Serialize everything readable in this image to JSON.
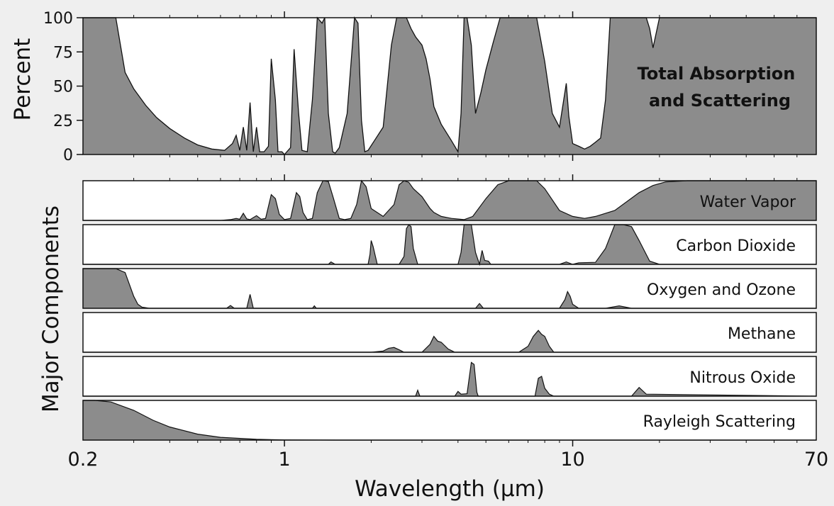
{
  "colors": {
    "background": "#efefef",
    "fill": "#8c8c8c",
    "line": "#111111",
    "panel": "#ffffff"
  },
  "chart_data": {
    "type": "area",
    "xlabel": "Wavelength (µm)",
    "x_scale": "log",
    "xlim": [
      0.2,
      70
    ],
    "x_ticks": [
      0.2,
      1,
      10,
      70
    ],
    "x_ticklabels": [
      "0.2",
      "1",
      "10",
      "70"
    ],
    "top_panel": {
      "title_lines": [
        "Total Absorption",
        "and Scattering"
      ],
      "ylabel": "Percent",
      "ylim": [
        0,
        100
      ],
      "y_ticks": [
        0,
        25,
        50,
        75,
        100
      ],
      "y_ticklabels": [
        "0",
        "25",
        "50",
        "75",
        "100"
      ],
      "x": [
        0.2,
        0.26,
        0.28,
        0.3,
        0.33,
        0.36,
        0.4,
        0.45,
        0.5,
        0.56,
        0.62,
        0.66,
        0.68,
        0.7,
        0.72,
        0.74,
        0.76,
        0.78,
        0.8,
        0.82,
        0.85,
        0.88,
        0.9,
        0.93,
        0.95,
        0.98,
        1.0,
        1.05,
        1.08,
        1.12,
        1.15,
        1.2,
        1.25,
        1.3,
        1.35,
        1.38,
        1.42,
        1.47,
        1.5,
        1.55,
        1.65,
        1.75,
        1.8,
        1.85,
        1.9,
        1.95,
        2.05,
        2.2,
        2.35,
        2.45,
        2.55,
        2.65,
        2.75,
        2.85,
        3.0,
        3.1,
        3.2,
        3.3,
        3.5,
        3.8,
        4.0,
        4.1,
        4.2,
        4.3,
        4.45,
        4.6,
        4.8,
        5.0,
        5.3,
        5.6,
        6.0,
        6.5,
        7.0,
        7.5,
        8.0,
        8.5,
        9.0,
        9.5,
        9.7,
        10.0,
        10.5,
        11.0,
        11.5,
        12.0,
        12.5,
        13.0,
        13.5,
        14.0,
        15.0,
        17.0,
        18.0,
        18.5,
        19.0,
        20.0,
        22.0,
        30.0,
        50.0,
        70.0
      ],
      "y": [
        100,
        100,
        60,
        48,
        36,
        27,
        19,
        12,
        7,
        4,
        3,
        8,
        14,
        3,
        20,
        3,
        38,
        2,
        20,
        2,
        2,
        6,
        70,
        40,
        2,
        2,
        0,
        5,
        77,
        30,
        3,
        2,
        40,
        100,
        96,
        100,
        30,
        2,
        1,
        5,
        30,
        100,
        96,
        25,
        2,
        3,
        10,
        20,
        80,
        100,
        100,
        100,
        92,
        86,
        80,
        70,
        55,
        35,
        22,
        10,
        2,
        30,
        100,
        100,
        80,
        30,
        45,
        62,
        82,
        100,
        100,
        100,
        100,
        100,
        68,
        30,
        20,
        52,
        28,
        8,
        6,
        4,
        6,
        9,
        12,
        40,
        100,
        100,
        100,
        100,
        100,
        92,
        78,
        100,
        100,
        100,
        100,
        100
      ]
    },
    "series": [
      {
        "name": "Water Vapor",
        "x": [
          0.2,
          0.6,
          0.65,
          0.68,
          0.7,
          0.72,
          0.74,
          0.76,
          0.8,
          0.83,
          0.86,
          0.9,
          0.93,
          0.96,
          1.0,
          1.05,
          1.1,
          1.13,
          1.16,
          1.2,
          1.25,
          1.3,
          1.36,
          1.42,
          1.48,
          1.55,
          1.62,
          1.7,
          1.78,
          1.85,
          1.92,
          2.0,
          2.2,
          2.4,
          2.5,
          2.6,
          2.7,
          2.8,
          3.0,
          3.2,
          3.3,
          3.5,
          3.8,
          4.2,
          4.5,
          5.0,
          5.5,
          6.0,
          6.5,
          7.0,
          7.5,
          8.0,
          9.0,
          10.0,
          11.0,
          12.0,
          14.0,
          17.0,
          19.0,
          21.0,
          25.0,
          70.0
        ],
        "y": [
          0,
          0,
          2,
          5,
          3,
          18,
          4,
          2,
          12,
          3,
          5,
          65,
          55,
          15,
          2,
          5,
          70,
          60,
          20,
          2,
          5,
          70,
          100,
          98,
          55,
          5,
          2,
          5,
          40,
          100,
          85,
          30,
          10,
          40,
          90,
          100,
          96,
          80,
          60,
          30,
          20,
          10,
          5,
          2,
          10,
          55,
          90,
          100,
          100,
          100,
          100,
          80,
          25,
          10,
          5,
          10,
          25,
          70,
          88,
          97,
          100,
          100
        ]
      },
      {
        "name": "Carbon Dioxide",
        "x": [
          0.2,
          1.42,
          1.45,
          1.5,
          1.95,
          1.98,
          2.0,
          2.03,
          2.06,
          2.1,
          2.5,
          2.6,
          2.65,
          2.7,
          2.75,
          2.8,
          2.9,
          4.0,
          4.1,
          4.2,
          4.3,
          4.45,
          4.6,
          4.75,
          4.85,
          4.95,
          5.1,
          5.2,
          9.0,
          9.5,
          10.0,
          10.5,
          12.0,
          13.0,
          14.0,
          15.0,
          16.0,
          17.0,
          18.5,
          20.0,
          70.0
        ],
        "y": [
          0,
          0,
          6,
          0,
          0,
          25,
          60,
          45,
          25,
          0,
          0,
          20,
          90,
          100,
          95,
          40,
          0,
          0,
          30,
          100,
          100,
          100,
          30,
          0,
          35,
          10,
          8,
          0,
          0,
          6,
          0,
          4,
          5,
          40,
          100,
          100,
          95,
          60,
          8,
          0,
          0
        ]
      },
      {
        "name": "Oxygen and Ozone",
        "x": [
          0.2,
          0.26,
          0.28,
          0.3,
          0.31,
          0.32,
          0.34,
          0.4,
          0.63,
          0.65,
          0.67,
          0.74,
          0.76,
          0.78,
          1.25,
          1.27,
          1.29,
          4.6,
          4.75,
          4.9,
          9.0,
          9.4,
          9.6,
          9.8,
          10.0,
          10.5,
          13.0,
          14.5,
          16.0,
          70.0
        ],
        "y": [
          100,
          100,
          90,
          30,
          10,
          3,
          0,
          0,
          0,
          7,
          0,
          0,
          35,
          0,
          0,
          6,
          0,
          0,
          12,
          0,
          0,
          22,
          42,
          30,
          10,
          0,
          0,
          6,
          0,
          0
        ]
      },
      {
        "name": "Methane",
        "x": [
          0.2,
          2.0,
          2.2,
          2.3,
          2.4,
          2.5,
          2.6,
          3.0,
          3.2,
          3.3,
          3.4,
          3.5,
          3.7,
          3.9,
          6.5,
          7.0,
          7.3,
          7.6,
          7.8,
          8.0,
          8.3,
          8.6,
          70.0
        ],
        "y": [
          0,
          0,
          3,
          10,
          12,
          6,
          0,
          0,
          20,
          40,
          28,
          25,
          8,
          0,
          0,
          15,
          40,
          55,
          45,
          40,
          15,
          0,
          0
        ]
      },
      {
        "name": "Nitrous Oxide",
        "x": [
          0.2,
          2.85,
          2.9,
          2.95,
          3.9,
          4.0,
          4.1,
          4.3,
          4.45,
          4.55,
          4.65,
          4.7,
          7.4,
          7.6,
          7.8,
          8.0,
          8.3,
          8.6,
          16.0,
          17.0,
          18.0,
          70.0
        ],
        "y": [
          0,
          0,
          15,
          0,
          0,
          12,
          5,
          6,
          85,
          80,
          10,
          0,
          0,
          45,
          50,
          20,
          5,
          0,
          0,
          22,
          5,
          0
        ]
      },
      {
        "name": "Rayleigh Scattering",
        "x": [
          0.2,
          0.22,
          0.25,
          0.3,
          0.35,
          0.4,
          0.5,
          0.6,
          0.8,
          1.0,
          1.5,
          70.0
        ],
        "y": [
          100,
          100,
          96,
          75,
          50,
          33,
          15,
          7,
          2,
          0.5,
          0,
          0
        ]
      }
    ]
  }
}
